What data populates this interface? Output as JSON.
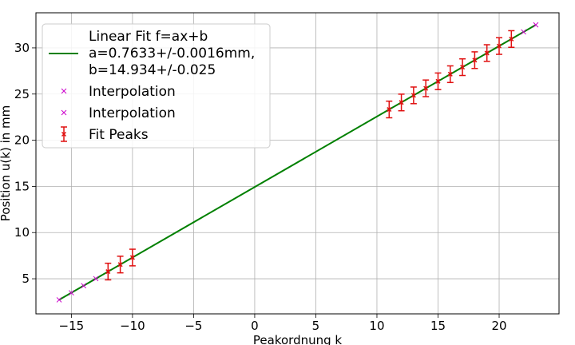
{
  "chart_data": {
    "type": "scatter",
    "xlabel": "Peakordnung k",
    "ylabel": "Position u(k) in mm",
    "xlim": [
      -17.9,
      24.9
    ],
    "ylim": [
      1.2,
      33.8
    ],
    "xticks": [
      -15,
      -10,
      -5,
      0,
      5,
      10,
      15,
      20
    ],
    "yticks": [
      5,
      10,
      15,
      20,
      25,
      30
    ],
    "grid": true,
    "legend_position": "top-left",
    "fit": {
      "legend_lines": [
        "Linear Fit f=ax+b",
        "a=0.7633+/-0.0016mm,",
        "b=14.934+/-0.025"
      ],
      "a": 0.7633,
      "b": 14.934,
      "x_range": [
        -16,
        23
      ],
      "color": "#008000"
    },
    "series": [
      {
        "name": "Interpolation",
        "marker": "x",
        "color": "#cc00cc",
        "x": [
          -16,
          -15,
          -14,
          -13
        ],
        "y": [
          2.72,
          3.48,
          4.25,
          5.01
        ]
      },
      {
        "name": "Interpolation",
        "marker": "x",
        "color": "#cc00cc",
        "x": [
          22,
          23
        ],
        "y": [
          31.73,
          32.49
        ]
      },
      {
        "name": "Fit Peaks",
        "marker": "x",
        "color": "#e01010",
        "errorbars": true,
        "x": [
          -12,
          -11,
          -10,
          11,
          12,
          13,
          14,
          15,
          16,
          17,
          18,
          19,
          20,
          21
        ],
        "y": [
          5.78,
          6.54,
          7.3,
          23.33,
          24.09,
          24.86,
          25.62,
          26.38,
          27.15,
          27.91,
          28.67,
          29.44,
          30.2,
          30.96
        ],
        "yerr": [
          0.9,
          0.9,
          0.9,
          0.9,
          0.9,
          0.9,
          0.9,
          0.9,
          0.9,
          0.9,
          0.9,
          0.9,
          0.9,
          0.9
        ]
      }
    ]
  }
}
